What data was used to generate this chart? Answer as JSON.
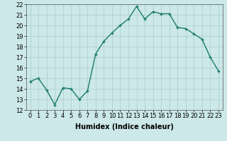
{
  "x": [
    0,
    1,
    2,
    3,
    4,
    5,
    6,
    7,
    8,
    9,
    10,
    11,
    12,
    13,
    14,
    15,
    16,
    17,
    18,
    19,
    20,
    21,
    22,
    23
  ],
  "y": [
    14.7,
    15.0,
    13.9,
    12.5,
    14.1,
    14.0,
    13.0,
    13.8,
    17.3,
    18.5,
    19.3,
    20.0,
    20.6,
    21.8,
    20.6,
    21.3,
    21.1,
    21.1,
    19.8,
    19.7,
    19.2,
    18.7,
    17.0,
    15.7
  ],
  "line_color": "#1a7a6e",
  "marker": "+",
  "marker_size": 3,
  "bg_color": "#cce8e8",
  "grid_color": "#aacccc",
  "xlabel": "Humidex (Indice chaleur)",
  "ylim": [
    12,
    22
  ],
  "yticks": [
    12,
    13,
    14,
    15,
    16,
    17,
    18,
    19,
    20,
    21,
    22
  ],
  "xticks": [
    0,
    1,
    2,
    3,
    4,
    5,
    6,
    7,
    8,
    9,
    10,
    11,
    12,
    13,
    14,
    15,
    16,
    17,
    18,
    19,
    20,
    21,
    22,
    23
  ],
  "xtick_labels": [
    "0",
    "1",
    "2",
    "3",
    "4",
    "5",
    "6",
    "7",
    "8",
    "9",
    "10",
    "11",
    "12",
    "13",
    "14",
    "15",
    "16",
    "17",
    "18",
    "19",
    "20",
    "21",
    "22",
    "23"
  ],
  "xlabel_fontsize": 7,
  "tick_fontsize": 6,
  "line_width": 1.0,
  "marker_edge_width": 1.0
}
